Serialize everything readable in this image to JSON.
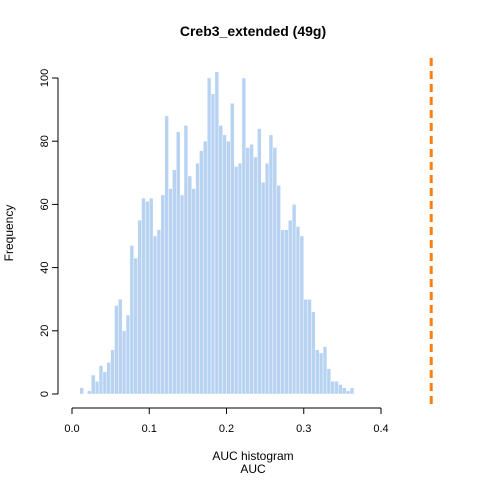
{
  "chart_data": {
    "type": "bar",
    "title": "Creb3_extended (49g)",
    "xlabel": "AUC histogram",
    "xlabel2": "AUC",
    "ylabel": "Frequency",
    "xlim": [
      0,
      0.4
    ],
    "ylim": [
      0,
      105
    ],
    "xticks": [
      "0.0",
      "0.1",
      "0.2",
      "0.3",
      "0.4"
    ],
    "yticks": [
      "0",
      "20",
      "40",
      "60",
      "80",
      "100"
    ],
    "bin_width": 0.005,
    "bin_start": 0.005,
    "values": [
      0,
      2,
      0,
      1,
      6,
      4,
      9,
      7,
      10,
      14,
      28,
      30,
      20,
      25,
      47,
      43,
      55,
      62,
      61,
      62,
      50,
      52,
      63,
      88,
      65,
      71,
      83,
      63,
      85,
      69,
      65,
      73,
      77,
      80,
      100,
      95,
      102,
      85,
      82,
      80,
      92,
      72,
      73,
      100,
      78,
      79,
      75,
      84,
      67,
      73,
      82,
      78,
      66,
      52,
      52,
      55,
      60,
      53,
      50,
      30,
      30,
      26,
      14,
      13,
      15,
      8,
      4,
      4,
      3,
      2,
      1,
      2
    ],
    "bar_color": "#b8d3f2",
    "reference_line": {
      "x": 0.465,
      "color": "#ff7f0e",
      "style": "dashed"
    },
    "grid": false,
    "legend": "none"
  }
}
